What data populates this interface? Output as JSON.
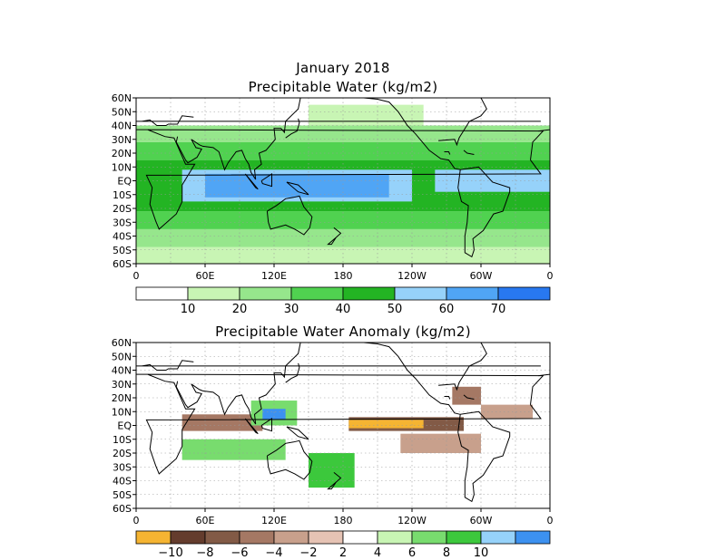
{
  "chart_data": [
    {
      "type": "heatmap",
      "title": "January 2018",
      "subtitle": "Precipitable Water (kg/m2)",
      "lon_ticks": [
        "0",
        "60E",
        "120E",
        "180",
        "120W",
        "60W",
        "0"
      ],
      "lat_ticks": [
        "60N",
        "50N",
        "40N",
        "30N",
        "20N",
        "10N",
        "EQ",
        "10S",
        "20S",
        "30S",
        "40S",
        "50S",
        "60S"
      ],
      "xlim": [
        0,
        360
      ],
      "ylim": [
        -60,
        60
      ],
      "grid": true,
      "colorbar": {
        "levels": [
          "10",
          "20",
          "30",
          "40",
          "50",
          "60",
          "70"
        ],
        "colors": [
          "#ffffff",
          "#c8f5b4",
          "#96e68c",
          "#50d250",
          "#23b423",
          "#96d2fa",
          "#50a5f5",
          "#2878f0"
        ]
      },
      "regions": [
        {
          "lon": [
            0,
            360
          ],
          "lat": [
            -60,
            -48
          ],
          "bin": 1
        },
        {
          "lon": [
            0,
            360
          ],
          "lat": [
            -48,
            -35
          ],
          "bin": 2
        },
        {
          "lon": [
            0,
            360
          ],
          "lat": [
            -35,
            -22
          ],
          "bin": 3
        },
        {
          "lon": [
            0,
            360
          ],
          "lat": [
            -22,
            15
          ],
          "bin": 4
        },
        {
          "lon": [
            0,
            360
          ],
          "lat": [
            15,
            28
          ],
          "bin": 3
        },
        {
          "lon": [
            0,
            360
          ],
          "lat": [
            28,
            40
          ],
          "bin": 2
        },
        {
          "lon": [
            20,
            240
          ],
          "lat": [
            28,
            40
          ],
          "bin": 2
        },
        {
          "lon": [
            150,
            250
          ],
          "lat": [
            40,
            55
          ],
          "bin": 1
        },
        {
          "lon": [
            40,
            240
          ],
          "lat": [
            -15,
            8
          ],
          "bin": 5
        },
        {
          "lon": [
            260,
            360
          ],
          "lat": [
            -8,
            8
          ],
          "bin": 5
        },
        {
          "lon": [
            60,
            220
          ],
          "lat": [
            -12,
            5
          ],
          "bin": 6
        }
      ]
    },
    {
      "type": "heatmap",
      "title": "Precipitable Water Anomaly (kg/m2)",
      "lon_ticks": [
        "0",
        "60E",
        "120E",
        "180",
        "120W",
        "60W",
        "0"
      ],
      "lat_ticks": [
        "60N",
        "50N",
        "40N",
        "30N",
        "20N",
        "10N",
        "EQ",
        "10S",
        "20S",
        "30S",
        "40S",
        "50S",
        "60S"
      ],
      "xlim": [
        0,
        360
      ],
      "ylim": [
        -60,
        60
      ],
      "grid": true,
      "colorbar": {
        "levels": [
          "−10",
          "−8",
          "−6",
          "−4",
          "−2",
          "2",
          "4",
          "6",
          "8",
          "10"
        ],
        "colors": [
          "#f5b432",
          "#643c2d",
          "#825a46",
          "#a57864",
          "#c8a08c",
          "#e6c3b4",
          "#ffffff",
          "#c8f5b4",
          "#78dc6e",
          "#3cc83c",
          "#96d2fa",
          "#3c91f0"
        ]
      },
      "regions": [
        {
          "lon": [
            40,
            110
          ],
          "lat": [
            -4,
            8
          ],
          "bin": 3
        },
        {
          "lon": [
            185,
            285
          ],
          "lat": [
            -4,
            6
          ],
          "bin": 2
        },
        {
          "lon": [
            185,
            250
          ],
          "lat": [
            -2,
            4
          ],
          "bin": 0
        },
        {
          "lon": [
            230,
            300
          ],
          "lat": [
            -20,
            -6
          ],
          "bin": 4
        },
        {
          "lon": [
            100,
            140
          ],
          "lat": [
            0,
            18
          ],
          "bin": 8
        },
        {
          "lon": [
            110,
            130
          ],
          "lat": [
            4,
            12
          ],
          "bin": 11
        },
        {
          "lon": [
            40,
            130
          ],
          "lat": [
            -25,
            -10
          ],
          "bin": 8
        },
        {
          "lon": [
            150,
            190
          ],
          "lat": [
            -45,
            -20
          ],
          "bin": 9
        },
        {
          "lon": [
            275,
            300
          ],
          "lat": [
            15,
            28
          ],
          "bin": 3
        },
        {
          "lon": [
            300,
            345
          ],
          "lat": [
            5,
            15
          ],
          "bin": 4
        }
      ]
    }
  ]
}
